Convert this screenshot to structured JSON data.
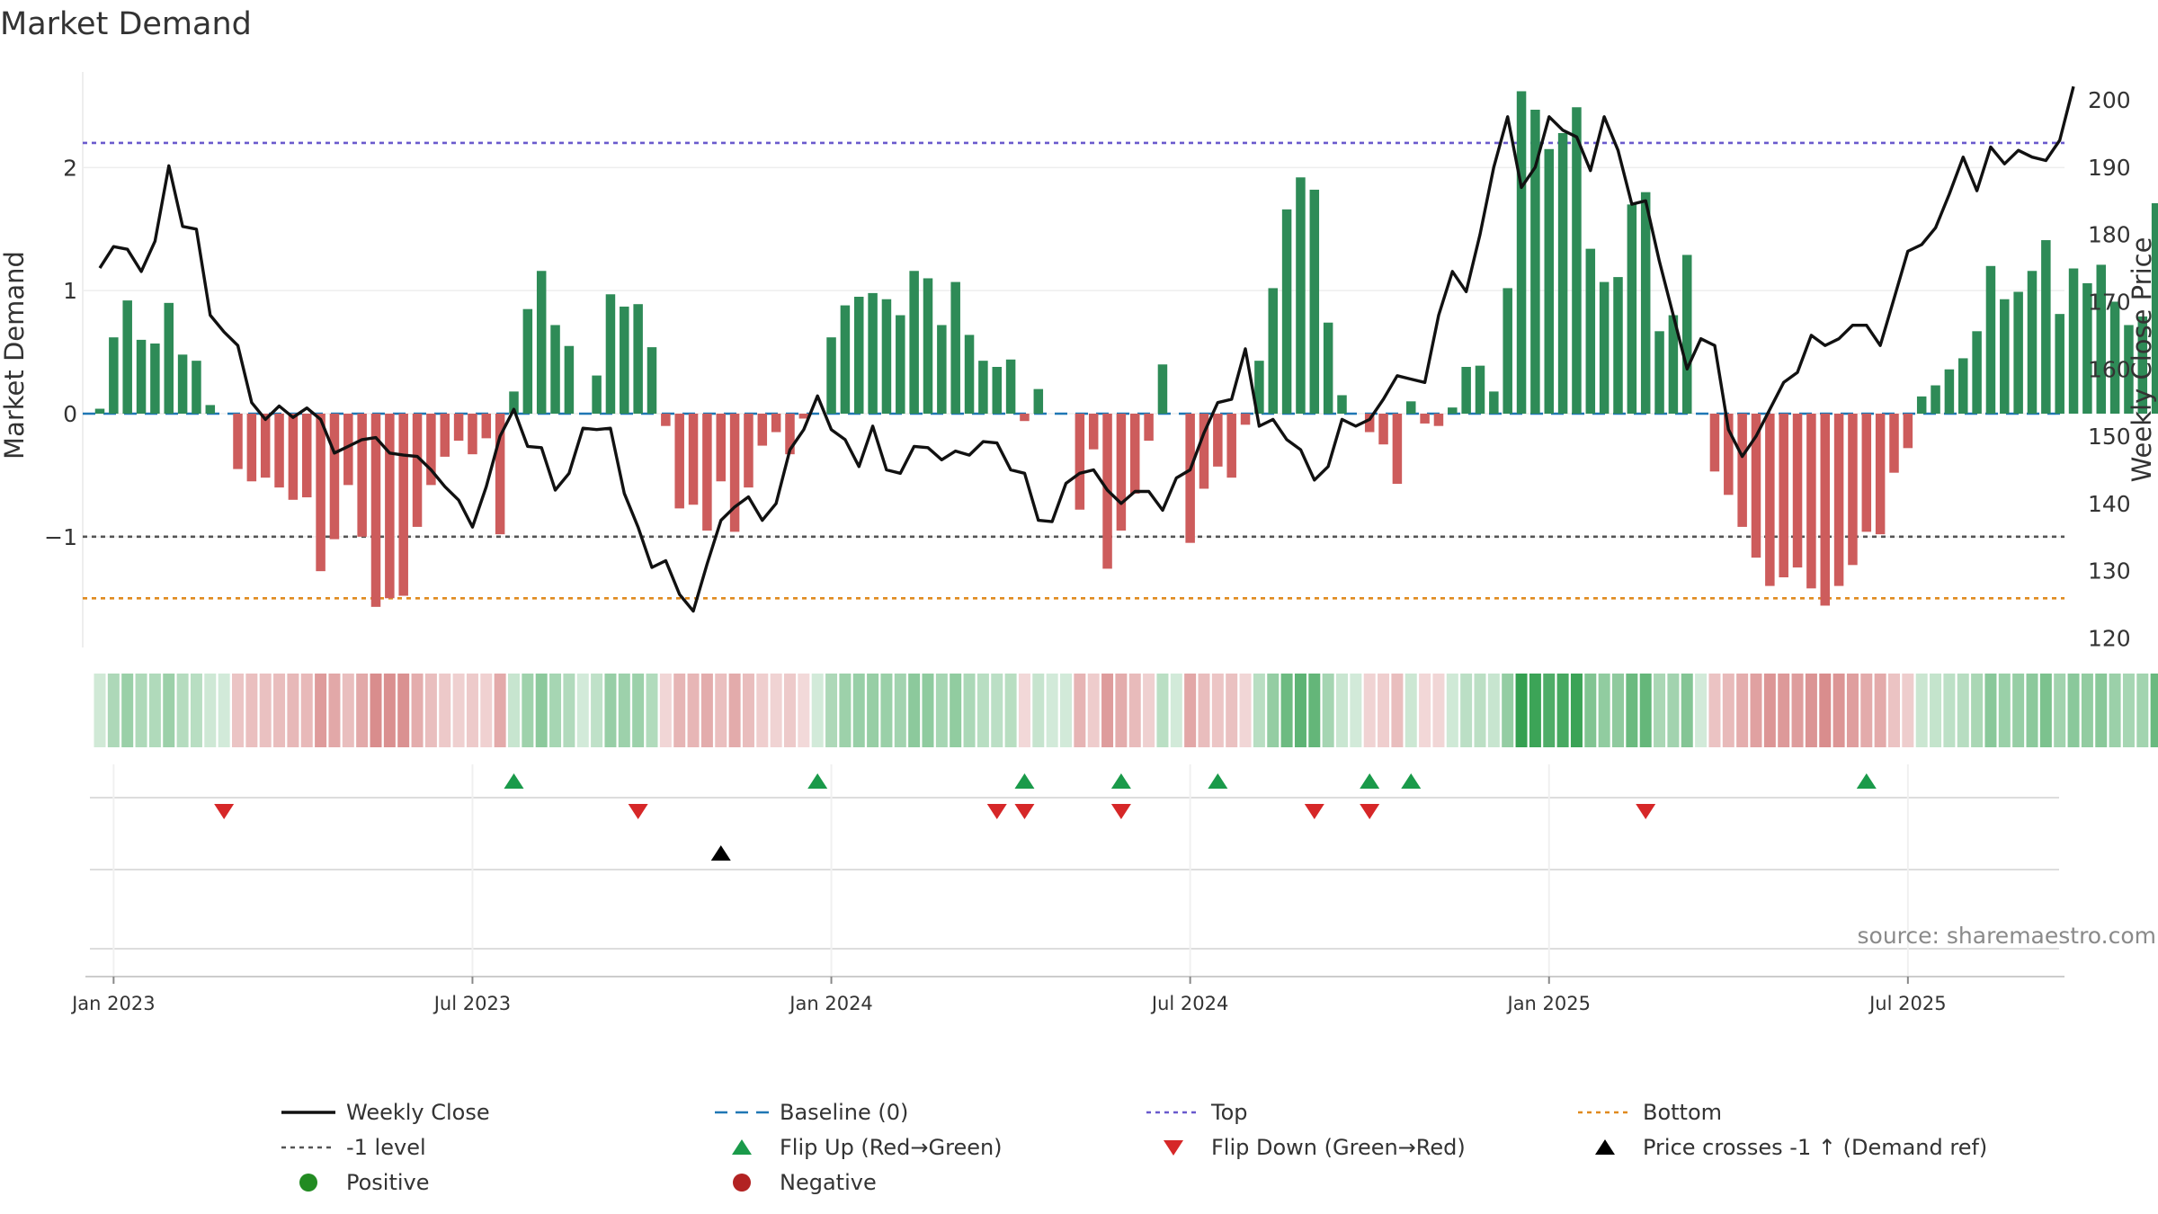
{
  "title": "Market Demand",
  "source": "source: sharemaestro.com",
  "colors": {
    "positive_bar": "#2e8b57",
    "negative_bar": "#cd5c5c",
    "price_line": "#111111",
    "baseline": "#1f77b4",
    "top_line": "#6a5acd",
    "level_line": "#555555",
    "bottom_line": "#e08a1e",
    "flip_up": "#1a9a4a",
    "flip_down": "#d62728",
    "cross_marker": "#000000",
    "positive_dot": "#228b22",
    "negative_dot": "#b22222"
  },
  "legend": [
    {
      "id": "weekly-close",
      "label": "Weekly Close",
      "symbol": "line"
    },
    {
      "id": "baseline",
      "label": "Baseline (0)",
      "symbol": "dash"
    },
    {
      "id": "top",
      "label": "Top",
      "symbol": "dot-line-top"
    },
    {
      "id": "bottom",
      "label": "Bottom",
      "symbol": "dot-line-bottom"
    },
    {
      "id": "minus1-level",
      "label": "-1 level",
      "symbol": "dot-line-level"
    },
    {
      "id": "flip-up",
      "label": "Flip Up (Red→Green)",
      "symbol": "triangle-up"
    },
    {
      "id": "flip-down",
      "label": "Flip Down (Green→Red)",
      "symbol": "triangle-down"
    },
    {
      "id": "price-cross",
      "label": "Price crosses -1 ↑ (Demand ref)",
      "symbol": "triangle-up-black"
    },
    {
      "id": "positive",
      "label": "Positive",
      "symbol": "dot-positive"
    },
    {
      "id": "negative",
      "label": "Negative",
      "symbol": "dot-negative"
    }
  ],
  "chart_data": {
    "type": "bar",
    "title": "Market Demand",
    "ylabel": "Market Demand",
    "y2label": "Weekly Close Price",
    "ylim": [
      -1.9,
      2.85
    ],
    "y2lim": [
      118.6,
      205.5
    ],
    "yticks": [
      2,
      1,
      0,
      -1
    ],
    "ytick_labels": [
      "2",
      "1",
      "0",
      "−1"
    ],
    "y2ticks": [
      200,
      190,
      180,
      170,
      160,
      150,
      140,
      130,
      120
    ],
    "x_tick_labels": [
      "Jan 2023",
      "Jul 2023",
      "Jan 2024",
      "Jul 2024",
      "Jan 2025",
      "Jul 2025"
    ],
    "x_tick_week_index": [
      1,
      27,
      53,
      79,
      105,
      131
    ],
    "reference_lines": {
      "baseline": 0,
      "top": 2.2,
      "minus1_level": -1,
      "bottom": -1.5
    },
    "series": [
      {
        "name": "Market Demand",
        "kind": "bar",
        "values": [
          0.04,
          0.62,
          0.92,
          0.6,
          0.57,
          0.9,
          0.48,
          0.43,
          0.07,
          0,
          -0.45,
          -0.55,
          -0.52,
          -0.6,
          -0.7,
          -0.68,
          -1.28,
          -1.02,
          -0.58,
          -1.0,
          -1.57,
          -1.5,
          -1.48,
          -0.92,
          -0.58,
          -0.35,
          -0.22,
          -0.33,
          -0.2,
          -0.98,
          0.18,
          0.85,
          1.16,
          0.72,
          0.55,
          0,
          0.31,
          0.97,
          0.87,
          0.89,
          0.54,
          -0.1,
          -0.77,
          -0.74,
          -0.95,
          -0.55,
          -0.96,
          -0.6,
          -0.26,
          -0.15,
          -0.33,
          -0.04,
          0,
          0.62,
          0.88,
          0.95,
          0.98,
          0.93,
          0.8,
          1.16,
          1.1,
          0.72,
          1.07,
          0.64,
          0.43,
          0.38,
          0.44,
          -0.06,
          0.2,
          0,
          0,
          -0.78,
          -0.29,
          -1.26,
          -0.95,
          -0.65,
          -0.22,
          0.4,
          0,
          -1.05,
          -0.61,
          -0.43,
          -0.52,
          -0.09,
          0.43,
          1.02,
          1.66,
          1.92,
          1.82,
          0.74,
          0.15,
          0,
          -0.15,
          -0.25,
          -0.57,
          0.1,
          -0.08,
          -0.1,
          0.05,
          0.38,
          0.39,
          0.18,
          1.02,
          2.62,
          2.47,
          2.15,
          2.28,
          2.49,
          1.34,
          1.07,
          1.11,
          1.7,
          1.8,
          0.67,
          0.8,
          1.29,
          0,
          -0.47,
          -0.66,
          -0.92,
          -1.17,
          -1.4,
          -1.33,
          -1.25,
          -1.42,
          -1.56,
          -1.4,
          -1.23,
          -0.96,
          -0.98,
          -0.48,
          -0.28,
          0.14,
          0.23,
          0.36,
          0.45,
          0.67,
          1.2,
          0.93,
          0.99,
          1.16,
          1.41,
          0.81,
          1.18,
          1.06,
          1.21,
          0.91,
          0.72,
          0.79,
          1.71
        ]
      },
      {
        "name": "Weekly Close",
        "kind": "line",
        "values": [
          175,
          178.2,
          177.8,
          174.5,
          179,
          190.2,
          181.2,
          180.8,
          168,
          165.5,
          163.5,
          155,
          152.5,
          154.5,
          152.8,
          154.2,
          152.5,
          147.5,
          148.5,
          149.5,
          149.8,
          147.5,
          147.2,
          147,
          145,
          142.5,
          140.5,
          136.5,
          142.5,
          150,
          154,
          148.5,
          148.3,
          142,
          144.5,
          151.2,
          151,
          151.2,
          141.5,
          136.5,
          130.5,
          131.5,
          126.5,
          124,
          131,
          137.5,
          139.5,
          141,
          137.5,
          140,
          148,
          151,
          156,
          151,
          149.5,
          145.5,
          151.5,
          145,
          144.5,
          148.5,
          148.3,
          146.5,
          147.8,
          147.2,
          149.2,
          149,
          145,
          144.5,
          137.5,
          137.3,
          143,
          144.5,
          145,
          142,
          140,
          141.8,
          141.8,
          139,
          143.8,
          145,
          150.5,
          155,
          155.5,
          163,
          151.5,
          152.5,
          149.5,
          148,
          143.5,
          145.5,
          152.5,
          151.5,
          152.5,
          155.5,
          159,
          158.5,
          158,
          168,
          174.5,
          171.5,
          180,
          190,
          197.5,
          187,
          190,
          197.5,
          195.5,
          194.5,
          189.5,
          197.5,
          192.5,
          184.5,
          185,
          176,
          168,
          160,
          164.5,
          163.5,
          151,
          147,
          150,
          154,
          158,
          159.5,
          165,
          163.5,
          164.5,
          166.5,
          166.5,
          163.5,
          170.5,
          177.5,
          178.5,
          181,
          186,
          191.5,
          186.5,
          193,
          190.5,
          192.5,
          191.5,
          191,
          194,
          202
        ]
      },
      {
        "name": "Flip Up (Red→Green)",
        "kind": "marker",
        "week_index": [
          30,
          52,
          67,
          74,
          81,
          92,
          95,
          128
        ]
      },
      {
        "name": "Flip Down (Green→Red)",
        "kind": "marker",
        "week_index": [
          9,
          39,
          65,
          67,
          74,
          88,
          92,
          112
        ]
      },
      {
        "name": "Price crosses -1 ↑ (Demand ref)",
        "kind": "marker",
        "week_index": [
          45
        ]
      }
    ]
  }
}
